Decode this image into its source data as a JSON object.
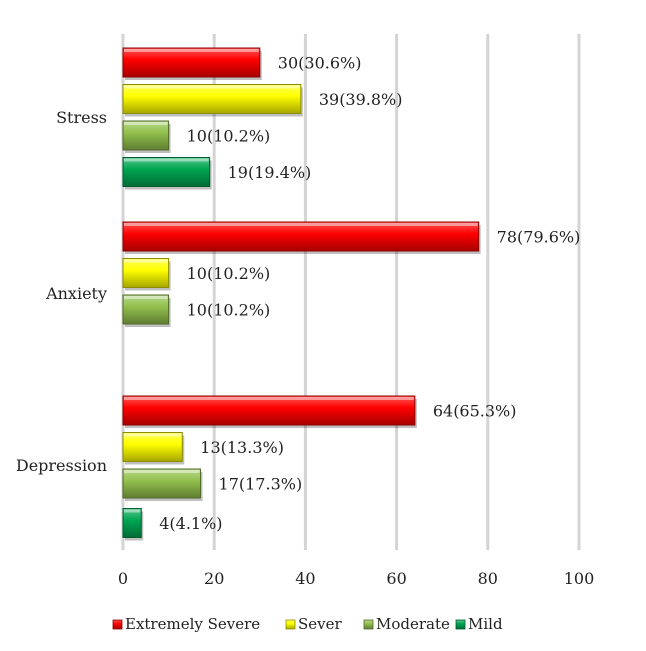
{
  "chart_data": {
    "type": "bar",
    "orientation": "horizontal",
    "categories": [
      "Stress",
      "Anxiety",
      "Depression"
    ],
    "series": [
      {
        "name": "Extremely Severe",
        "color": "#ff0000",
        "values": [
          30,
          78,
          64
        ],
        "labels": [
          "30(30.6%)",
          "78(79.6%)",
          "64(65.3%)"
        ]
      },
      {
        "name": "Sever",
        "color": "#ffff00",
        "values": [
          39,
          10,
          13
        ],
        "labels": [
          "39(39.8%)",
          "10(10.2%)",
          "13(13.3%)"
        ]
      },
      {
        "name": "Moderate",
        "color": "#92c14d",
        "values": [
          10,
          10,
          17
        ],
        "labels": [
          "10(10.2%)",
          "10(10.2%)",
          "17(17.3%)"
        ]
      },
      {
        "name": "Mild",
        "color": "#00a651",
        "values": [
          19,
          null,
          4
        ],
        "labels": [
          "19(19.4%)",
          null,
          "4(4.1%)"
        ]
      }
    ],
    "xticks": [
      "0",
      "20",
      "40",
      "60",
      "80",
      "100"
    ],
    "xlim": [
      0,
      100
    ],
    "grid": true,
    "legend_position": "bottom"
  }
}
